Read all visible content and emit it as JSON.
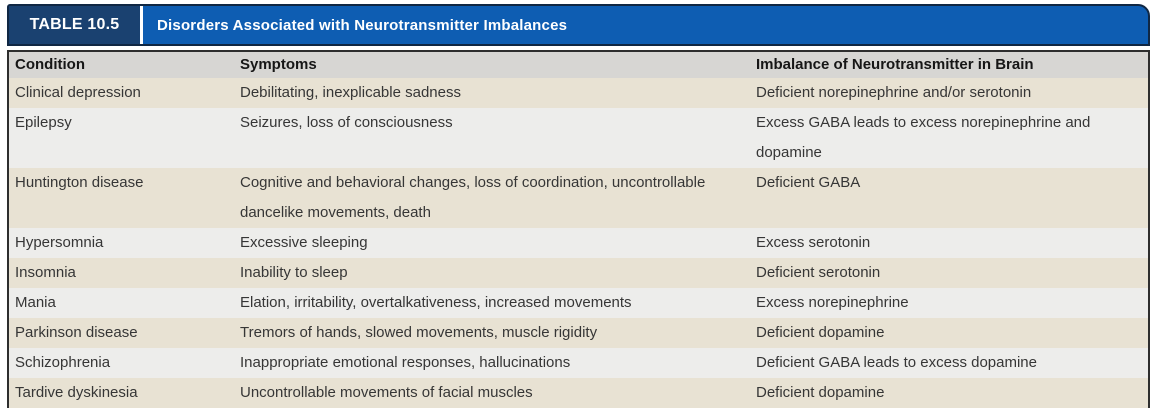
{
  "table": {
    "label": "TABLE 10.5",
    "title": "Disorders Associated with Neurotransmitter Imbalances",
    "columns": [
      "Condition",
      "Symptoms",
      "Imbalance of Neurotransmitter in Brain"
    ],
    "rows": [
      {
        "condition": "Clinical depression",
        "symptoms": "Debilitating, inexplicable sadness",
        "imbalance": "Deficient norepinephrine and/or serotonin"
      },
      {
        "condition": "Epilepsy",
        "symptoms": "Seizures, loss of consciousness",
        "imbalance": "Excess GABA leads to excess norepinephrine and\ndopamine"
      },
      {
        "condition": "Huntington disease",
        "symptoms": "Cognitive and behavioral changes, loss of coordination, uncontrollable\ndancelike movements, death",
        "imbalance": "Deficient GABA"
      },
      {
        "condition": "Hypersomnia",
        "symptoms": "Excessive sleeping",
        "imbalance": "Excess serotonin"
      },
      {
        "condition": "Insomnia",
        "symptoms": "Inability to sleep",
        "imbalance": "Deficient serotonin"
      },
      {
        "condition": "Mania",
        "symptoms": "Elation, irritability, overtalkativeness, increased movements",
        "imbalance": "Excess norepinephrine"
      },
      {
        "condition": "Parkinson disease",
        "symptoms": "Tremors of hands, slowed movements, muscle rigidity",
        "imbalance": "Deficient dopamine"
      },
      {
        "condition": "Schizophrenia",
        "symptoms": "Inappropriate emotional responses, hallucinations",
        "imbalance": "Deficient GABA leads to excess dopamine"
      },
      {
        "condition": "Tardive dyskinesia",
        "symptoms": "Uncontrollable movements of facial muscles",
        "imbalance": "Deficient dopamine"
      }
    ]
  },
  "colors": {
    "label_navy": "#1a4170",
    "title_blue": "#0e5db2",
    "header_row_gray": "#d7d6d3",
    "row_beige": "#e8e2d3",
    "row_light": "#ededeb",
    "border_dark": "#2e2e2e",
    "header_text": "#ffffff",
    "body_text": "#363636"
  }
}
